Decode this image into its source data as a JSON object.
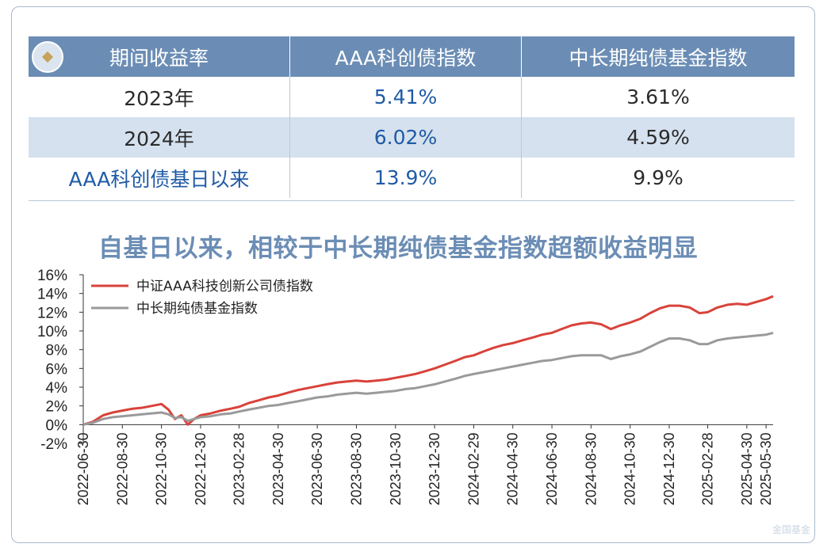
{
  "table": {
    "headers": [
      "期间收益率",
      "AAA科创债指数",
      "中长期纯债基金指数"
    ],
    "rows": [
      {
        "label": "2023年",
        "v1": "5.41%",
        "v2": "3.61%"
      },
      {
        "label": "2024年",
        "v1": "6.02%",
        "v2": "4.59%"
      },
      {
        "label": "AAA科创债基日以来",
        "v1": "13.9%",
        "v2": "9.9%"
      }
    ]
  },
  "watermark": "金国基金",
  "chart_data": {
    "type": "line",
    "title": "自基日以来，相较于中长期纯债基金指数超额收益明显",
    "xlabel": "",
    "ylabel": "",
    "ylim": [
      -2,
      16
    ],
    "yticks": [
      "16%",
      "14%",
      "12%",
      "10%",
      "8%",
      "6%",
      "4%",
      "2%",
      "0%",
      "-2%"
    ],
    "x_ticks": [
      "2022-06-30",
      "2022-08-30",
      "2022-10-30",
      "2022-12-30",
      "2023-02-28",
      "2023-04-30",
      "2023-06-30",
      "2023-08-30",
      "2023-10-30",
      "2023-12-30",
      "2024-02-29",
      "2024-04-30",
      "2024-06-30",
      "2024-08-30",
      "2024-10-30",
      "2024-12-30",
      "2025-02-28",
      "2025-04-30",
      "2025-05-30"
    ],
    "legend_position": "top-left",
    "series": [
      {
        "name": "中证AAA科技创新公司债指数",
        "color": "#d9423a",
        "x": [
          "2022-06-30",
          "2022-07-15",
          "2022-07-31",
          "2022-08-15",
          "2022-08-30",
          "2022-09-15",
          "2022-09-30",
          "2022-10-15",
          "2022-10-30",
          "2022-11-10",
          "2022-11-20",
          "2022-11-30",
          "2022-12-10",
          "2022-12-20",
          "2022-12-30",
          "2023-01-15",
          "2023-01-31",
          "2023-02-15",
          "2023-02-28",
          "2023-03-15",
          "2023-03-31",
          "2023-04-15",
          "2023-04-30",
          "2023-05-15",
          "2023-05-31",
          "2023-06-15",
          "2023-06-30",
          "2023-07-15",
          "2023-07-31",
          "2023-08-15",
          "2023-08-30",
          "2023-09-15",
          "2023-09-30",
          "2023-10-15",
          "2023-10-30",
          "2023-11-15",
          "2023-11-30",
          "2023-12-15",
          "2023-12-30",
          "2024-01-15",
          "2024-01-31",
          "2024-02-15",
          "2024-02-29",
          "2024-03-15",
          "2024-03-31",
          "2024-04-15",
          "2024-04-30",
          "2024-05-15",
          "2024-05-31",
          "2024-06-15",
          "2024-06-30",
          "2024-07-15",
          "2024-07-31",
          "2024-08-15",
          "2024-08-30",
          "2024-09-15",
          "2024-09-30",
          "2024-10-15",
          "2024-10-30",
          "2024-11-15",
          "2024-11-30",
          "2024-12-15",
          "2024-12-30",
          "2025-01-15",
          "2025-01-31",
          "2025-02-15",
          "2025-02-28",
          "2025-03-15",
          "2025-03-31",
          "2025-04-15",
          "2025-04-30",
          "2025-05-15",
          "2025-05-30",
          "2025-06-10"
        ],
        "values": [
          0.0,
          0.3,
          1.0,
          1.3,
          1.5,
          1.7,
          1.8,
          2.0,
          2.2,
          1.6,
          0.6,
          1.0,
          0.0,
          0.6,
          1.0,
          1.2,
          1.5,
          1.7,
          1.9,
          2.3,
          2.6,
          2.9,
          3.1,
          3.4,
          3.7,
          3.9,
          4.1,
          4.3,
          4.5,
          4.6,
          4.7,
          4.6,
          4.7,
          4.8,
          5.0,
          5.2,
          5.4,
          5.7,
          6.0,
          6.4,
          6.8,
          7.2,
          7.4,
          7.8,
          8.2,
          8.5,
          8.7,
          9.0,
          9.3,
          9.6,
          9.8,
          10.2,
          10.6,
          10.8,
          10.9,
          10.7,
          10.2,
          10.6,
          10.9,
          11.3,
          11.9,
          12.4,
          12.7,
          12.7,
          12.5,
          11.9,
          12.0,
          12.5,
          12.8,
          12.9,
          12.8,
          13.1,
          13.4,
          13.7
        ]
      },
      {
        "name": "中长期纯债基金指数",
        "color": "#9a9a9a",
        "x": [
          "2022-06-30",
          "2022-07-15",
          "2022-07-31",
          "2022-08-15",
          "2022-08-30",
          "2022-09-15",
          "2022-09-30",
          "2022-10-15",
          "2022-10-30",
          "2022-11-10",
          "2022-11-20",
          "2022-11-30",
          "2022-12-10",
          "2022-12-20",
          "2022-12-30",
          "2023-01-15",
          "2023-01-31",
          "2023-02-15",
          "2023-02-28",
          "2023-03-15",
          "2023-03-31",
          "2023-04-15",
          "2023-04-30",
          "2023-05-15",
          "2023-05-31",
          "2023-06-15",
          "2023-06-30",
          "2023-07-15",
          "2023-07-31",
          "2023-08-15",
          "2023-08-30",
          "2023-09-15",
          "2023-09-30",
          "2023-10-15",
          "2023-10-30",
          "2023-11-15",
          "2023-11-30",
          "2023-12-15",
          "2023-12-30",
          "2024-01-15",
          "2024-01-31",
          "2024-02-15",
          "2024-02-29",
          "2024-03-15",
          "2024-03-31",
          "2024-04-15",
          "2024-04-30",
          "2024-05-15",
          "2024-05-31",
          "2024-06-15",
          "2024-06-30",
          "2024-07-15",
          "2024-07-31",
          "2024-08-15",
          "2024-08-30",
          "2024-09-15",
          "2024-09-30",
          "2024-10-15",
          "2024-10-30",
          "2024-11-15",
          "2024-11-30",
          "2024-12-15",
          "2024-12-30",
          "2025-01-15",
          "2025-01-31",
          "2025-02-15",
          "2025-02-28",
          "2025-03-15",
          "2025-03-31",
          "2025-04-15",
          "2025-04-30",
          "2025-05-15",
          "2025-05-30",
          "2025-06-10"
        ],
        "values": [
          0.0,
          0.2,
          0.6,
          0.8,
          0.9,
          1.0,
          1.1,
          1.2,
          1.3,
          1.1,
          0.7,
          0.8,
          0.4,
          0.6,
          0.8,
          0.9,
          1.1,
          1.2,
          1.4,
          1.6,
          1.8,
          2.0,
          2.1,
          2.3,
          2.5,
          2.7,
          2.9,
          3.0,
          3.2,
          3.3,
          3.4,
          3.3,
          3.4,
          3.5,
          3.6,
          3.8,
          3.9,
          4.1,
          4.3,
          4.6,
          4.9,
          5.2,
          5.4,
          5.6,
          5.8,
          6.0,
          6.2,
          6.4,
          6.6,
          6.8,
          6.9,
          7.1,
          7.3,
          7.4,
          7.4,
          7.4,
          7.0,
          7.3,
          7.5,
          7.8,
          8.3,
          8.8,
          9.2,
          9.2,
          9.0,
          8.6,
          8.6,
          9.0,
          9.2,
          9.3,
          9.4,
          9.5,
          9.6,
          9.8
        ]
      }
    ]
  }
}
